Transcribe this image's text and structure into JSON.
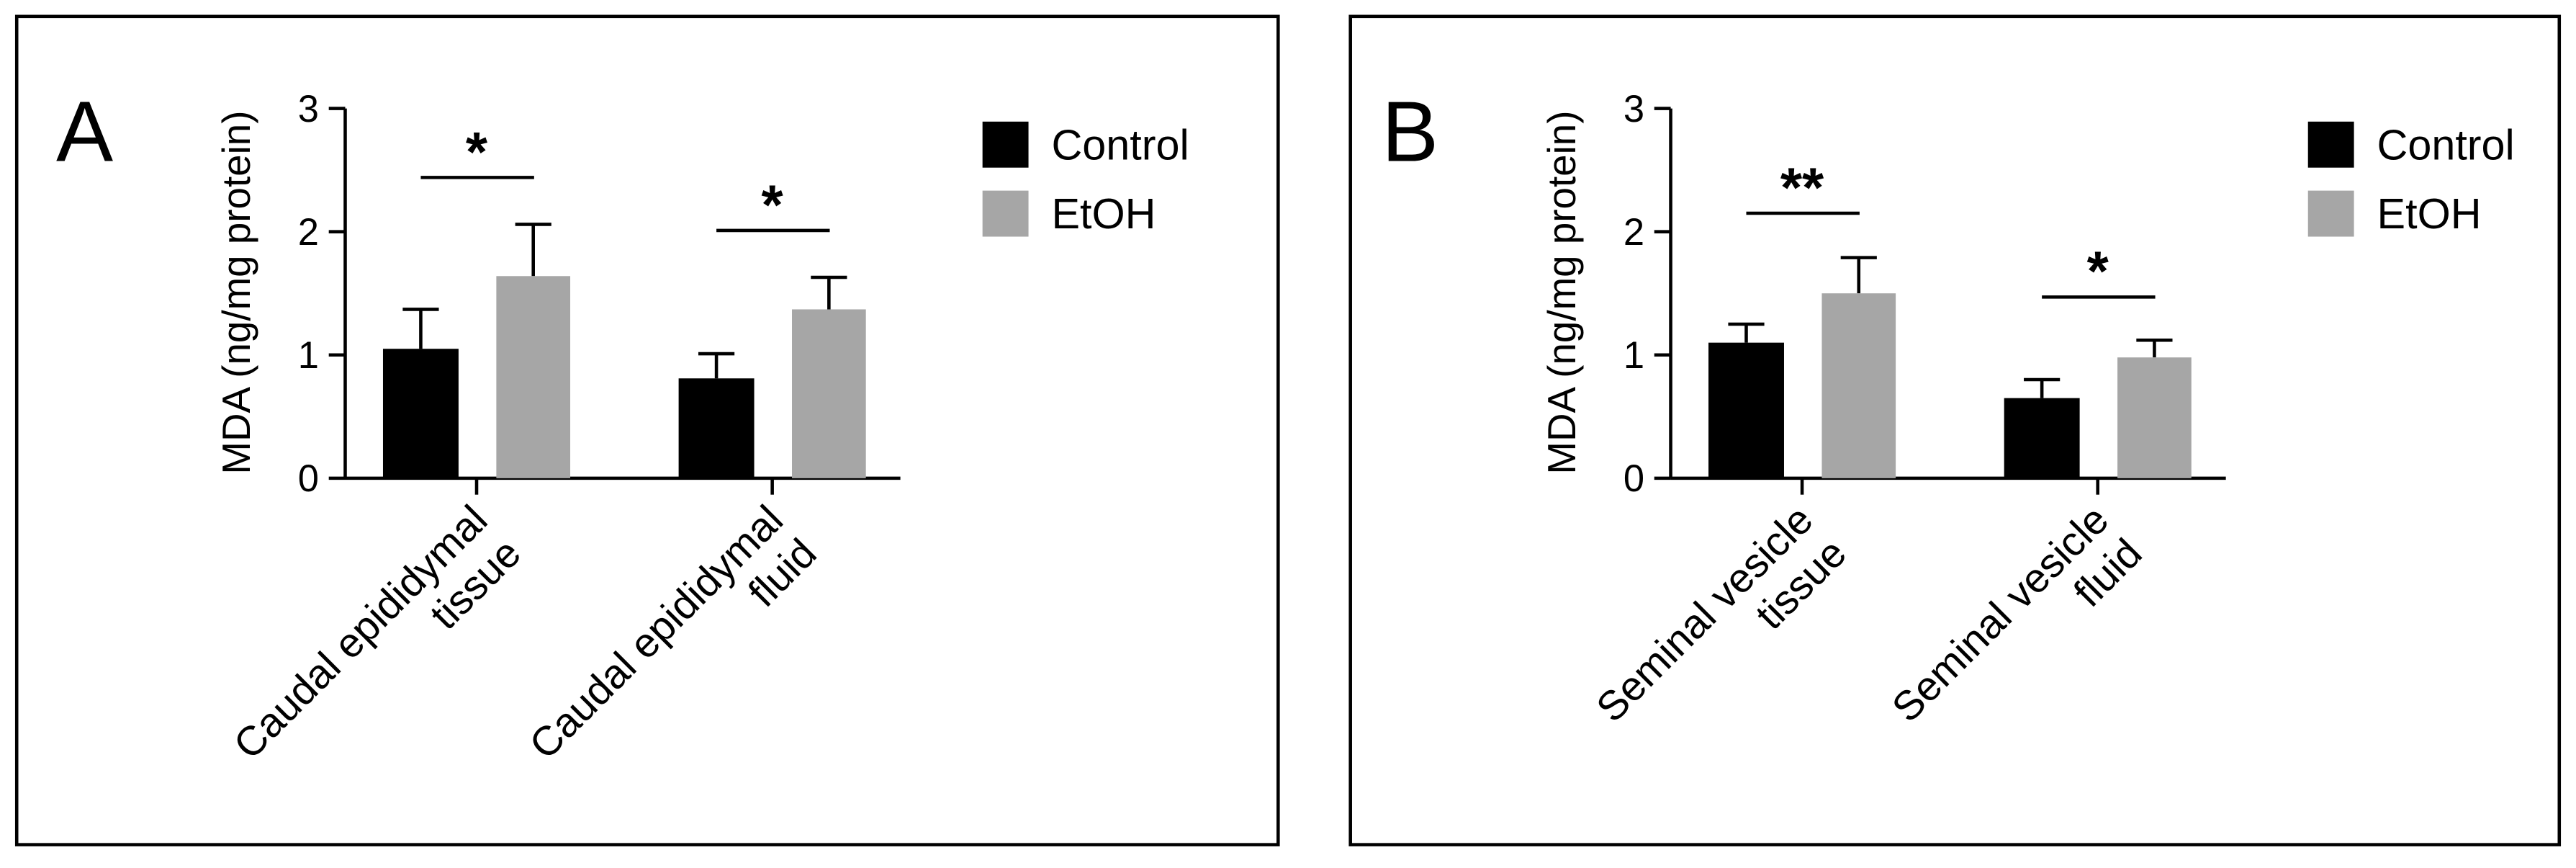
{
  "chart_data": [
    {
      "type": "bar",
      "panel_label": "A",
      "ylabel": "MDA (ng/mg protein)",
      "categories": [
        "Caudal epididymal\ntissue",
        "Caudal epididymal\nfluid"
      ],
      "series": [
        {
          "name": "Control",
          "color": "#000000",
          "values": [
            1.05,
            0.81
          ],
          "errors": [
            0.32,
            0.2
          ]
        },
        {
          "name": "EtOH",
          "color": "#a6a6a6",
          "values": [
            1.64,
            1.37
          ],
          "errors": [
            0.42,
            0.26
          ]
        }
      ],
      "ylim": [
        0,
        3
      ],
      "yticks": [
        0,
        1,
        2,
        3
      ],
      "annotations": [
        {
          "text": "*",
          "category": 0,
          "y": 2.44
        },
        {
          "text": "*",
          "category": 1,
          "y": 2.01
        }
      ]
    },
    {
      "type": "bar",
      "panel_label": "B",
      "ylabel": "MDA (ng/mg protein)",
      "categories": [
        "Seminal vesicle\ntissue",
        "Seminal vesicle\nfluid"
      ],
      "series": [
        {
          "name": "Control",
          "color": "#000000",
          "values": [
            1.1,
            0.65
          ],
          "errors": [
            0.15,
            0.15
          ]
        },
        {
          "name": "EtOH",
          "color": "#a6a6a6",
          "values": [
            1.5,
            0.98
          ],
          "errors": [
            0.29,
            0.14
          ]
        }
      ],
      "ylim": [
        0,
        3
      ],
      "yticks": [
        0,
        1,
        2,
        3
      ],
      "annotations": [
        {
          "text": "**",
          "category": 0,
          "y": 2.15
        },
        {
          "text": "*",
          "category": 1,
          "y": 1.47
        }
      ]
    }
  ]
}
